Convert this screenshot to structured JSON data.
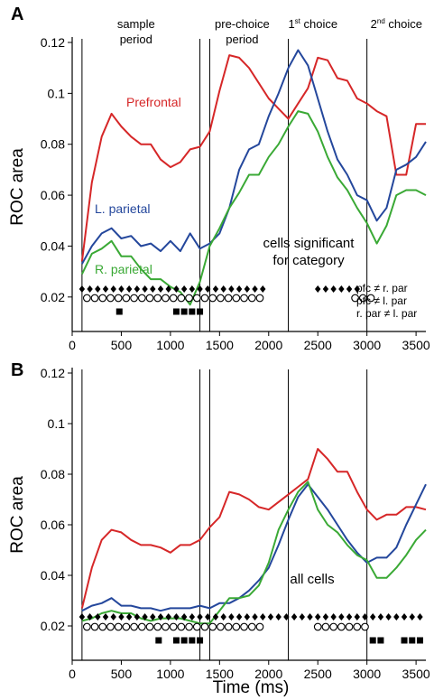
{
  "chart_data": [
    {
      "type": "line",
      "panel": "A",
      "note": [
        "cells significant",
        "for category"
      ],
      "ylabel": "ROC area",
      "xlabel": "",
      "xlim": [
        0,
        3600
      ],
      "ylim": [
        0.01,
        0.12
      ],
      "xticks": [
        0,
        500,
        1000,
        1500,
        2000,
        2500,
        3000,
        3500
      ],
      "yticks": [
        0.02,
        0.04,
        0.06,
        0.08,
        0.1,
        0.12
      ],
      "ytick_labels": [
        "0.02",
        "0.04",
        "0.06",
        "0.08",
        "0.1",
        "0.12"
      ],
      "event_lines": [
        100,
        1300,
        1400,
        2200,
        3000
      ],
      "period_labels": [
        {
          "lines": [
            "sample",
            "period"
          ],
          "x": 650
        },
        {
          "lines": [
            "pre-choice",
            "period"
          ],
          "x": 1730
        },
        {
          "main": "1",
          "sup": "st",
          "rest": " choice",
          "x": 2450
        },
        {
          "main": "2",
          "sup": "nd",
          "rest": " choice",
          "x": 3300
        }
      ],
      "series": [
        {
          "name": "Prefrontal",
          "color": "#d62728",
          "x": [
            100,
            200,
            300,
            400,
            500,
            600,
            700,
            800,
            900,
            1000,
            1100,
            1200,
            1300,
            1400,
            1500,
            1600,
            1700,
            1800,
            1900,
            2000,
            2100,
            2200,
            2300,
            2400,
            2500,
            2600,
            2700,
            2800,
            2900,
            3000,
            3100,
            3200,
            3300,
            3400,
            3500,
            3600
          ],
          "y": [
            0.034,
            0.065,
            0.083,
            0.092,
            0.087,
            0.083,
            0.08,
            0.08,
            0.074,
            0.071,
            0.073,
            0.078,
            0.079,
            0.085,
            0.101,
            0.115,
            0.114,
            0.11,
            0.104,
            0.098,
            0.094,
            0.09,
            0.096,
            0.102,
            0.114,
            0.113,
            0.106,
            0.105,
            0.098,
            0.096,
            0.093,
            0.091,
            0.068,
            0.068,
            0.088,
            0.088
          ]
        },
        {
          "name": "L. parietal",
          "color": "#24479c",
          "x": [
            100,
            200,
            300,
            400,
            500,
            600,
            700,
            800,
            900,
            1000,
            1100,
            1200,
            1300,
            1400,
            1500,
            1600,
            1700,
            1800,
            1900,
            2000,
            2100,
            2200,
            2300,
            2400,
            2500,
            2600,
            2700,
            2800,
            2900,
            3000,
            3100,
            3200,
            3300,
            3400,
            3500,
            3600
          ],
          "y": [
            0.033,
            0.04,
            0.045,
            0.047,
            0.043,
            0.044,
            0.04,
            0.041,
            0.038,
            0.042,
            0.038,
            0.045,
            0.039,
            0.041,
            0.045,
            0.055,
            0.07,
            0.078,
            0.08,
            0.091,
            0.1,
            0.11,
            0.117,
            0.111,
            0.098,
            0.085,
            0.074,
            0.068,
            0.06,
            0.058,
            0.05,
            0.055,
            0.07,
            0.072,
            0.075,
            0.081
          ]
        },
        {
          "name": "R. parietal",
          "color": "#3aa935",
          "x": [
            100,
            200,
            300,
            400,
            500,
            600,
            700,
            800,
            900,
            1000,
            1100,
            1200,
            1300,
            1400,
            1500,
            1600,
            1700,
            1800,
            1900,
            2000,
            2100,
            2200,
            2300,
            2400,
            2500,
            2600,
            2700,
            2800,
            2900,
            3000,
            3100,
            3200,
            3300,
            3400,
            3500,
            3600
          ],
          "y": [
            0.029,
            0.037,
            0.039,
            0.042,
            0.036,
            0.036,
            0.031,
            0.027,
            0.027,
            0.024,
            0.022,
            0.017,
            0.026,
            0.04,
            0.047,
            0.055,
            0.061,
            0.068,
            0.068,
            0.075,
            0.08,
            0.087,
            0.093,
            0.092,
            0.085,
            0.075,
            0.067,
            0.062,
            0.055,
            0.049,
            0.041,
            0.048,
            0.06,
            0.062,
            0.062,
            0.06
          ]
        }
      ],
      "significance_rows": [
        {
          "label": "pfc ≠ r. par",
          "marker": "diamond",
          "x": [
            100,
            180,
            260,
            340,
            420,
            500,
            580,
            660,
            740,
            820,
            900,
            980,
            1060,
            1140,
            1220,
            1300,
            1380,
            1460,
            1540,
            1620,
            1700,
            1780,
            1860,
            1940,
            2500,
            2580,
            2660,
            2740,
            2820,
            2900
          ]
        },
        {
          "label": "pfc ≠ l. par",
          "marker": "circle",
          "x": [
            150,
            230,
            310,
            390,
            470,
            550,
            630,
            710,
            790,
            870,
            950,
            1030,
            1110,
            1190,
            1270,
            1350,
            1430,
            1510,
            1590,
            1670,
            1750,
            1830,
            1910,
            2880,
            2960,
            3040
          ]
        },
        {
          "label": "r. par ≠ l. par",
          "marker": "square",
          "x": [
            480,
            1060,
            1140,
            1220,
            1300
          ]
        }
      ]
    },
    {
      "type": "line",
      "panel": "B",
      "note": [
        "all cells"
      ],
      "ylabel": "ROC area",
      "xlabel": "Time (ms)",
      "xlim": [
        0,
        3600
      ],
      "ylim": [
        0.01,
        0.12
      ],
      "xticks": [
        0,
        500,
        1000,
        1500,
        2000,
        2500,
        3000,
        3500
      ],
      "yticks": [
        0.02,
        0.04,
        0.06,
        0.08,
        0.1,
        0.12
      ],
      "ytick_labels": [
        "0.02",
        "0.04",
        "0.06",
        "0.08",
        "0.1",
        "0.12"
      ],
      "event_lines": [
        100,
        1300,
        1400,
        2200,
        3000
      ],
      "series": [
        {
          "name": "Prefrontal",
          "color": "#d62728",
          "x": [
            100,
            200,
            300,
            400,
            500,
            600,
            700,
            800,
            900,
            1000,
            1100,
            1200,
            1300,
            1400,
            1500,
            1600,
            1700,
            1800,
            1900,
            2000,
            2100,
            2200,
            2300,
            2400,
            2500,
            2600,
            2700,
            2800,
            2900,
            3000,
            3100,
            3200,
            3300,
            3400,
            3500,
            3600
          ],
          "y": [
            0.027,
            0.043,
            0.054,
            0.058,
            0.057,
            0.054,
            0.052,
            0.052,
            0.051,
            0.049,
            0.052,
            0.052,
            0.054,
            0.059,
            0.063,
            0.073,
            0.072,
            0.07,
            0.067,
            0.066,
            0.069,
            0.072,
            0.075,
            0.078,
            0.09,
            0.086,
            0.081,
            0.081,
            0.073,
            0.066,
            0.062,
            0.064,
            0.064,
            0.067,
            0.067,
            0.066
          ]
        },
        {
          "name": "L. parietal",
          "color": "#24479c",
          "x": [
            100,
            200,
            300,
            400,
            500,
            600,
            700,
            800,
            900,
            1000,
            1100,
            1200,
            1300,
            1400,
            1500,
            1600,
            1700,
            1800,
            1900,
            2000,
            2100,
            2200,
            2300,
            2400,
            2500,
            2600,
            2700,
            2800,
            2900,
            3000,
            3100,
            3200,
            3300,
            3400,
            3500,
            3600
          ],
          "y": [
            0.026,
            0.028,
            0.029,
            0.031,
            0.028,
            0.028,
            0.027,
            0.027,
            0.026,
            0.027,
            0.027,
            0.027,
            0.028,
            0.027,
            0.029,
            0.029,
            0.031,
            0.034,
            0.038,
            0.043,
            0.052,
            0.062,
            0.071,
            0.076,
            0.071,
            0.066,
            0.06,
            0.054,
            0.049,
            0.045,
            0.047,
            0.047,
            0.051,
            0.06,
            0.068,
            0.076
          ]
        },
        {
          "name": "R. parietal",
          "color": "#3aa935",
          "x": [
            100,
            200,
            300,
            400,
            500,
            600,
            700,
            800,
            900,
            1000,
            1100,
            1200,
            1300,
            1400,
            1500,
            1600,
            1700,
            1800,
            1900,
            2000,
            2100,
            2200,
            2300,
            2400,
            2500,
            2600,
            2700,
            2800,
            2900,
            3000,
            3100,
            3200,
            3300,
            3400,
            3500,
            3600
          ],
          "y": [
            0.022,
            0.023,
            0.025,
            0.026,
            0.025,
            0.025,
            0.023,
            0.022,
            0.023,
            0.023,
            0.023,
            0.022,
            0.021,
            0.021,
            0.026,
            0.031,
            0.031,
            0.032,
            0.036,
            0.045,
            0.058,
            0.066,
            0.073,
            0.077,
            0.066,
            0.06,
            0.057,
            0.052,
            0.048,
            0.046,
            0.039,
            0.039,
            0.043,
            0.048,
            0.054,
            0.058
          ]
        }
      ],
      "significance_rows": [
        {
          "label": "",
          "marker": "diamond",
          "x": [
            100,
            180,
            260,
            340,
            420,
            500,
            580,
            660,
            740,
            820,
            900,
            980,
            1060,
            1140,
            1220,
            1300,
            1380,
            1460,
            1540,
            1620,
            1700,
            1780,
            1860,
            1940,
            2020,
            2100,
            2180,
            2260,
            2340,
            2420,
            2500,
            2580,
            2660,
            2740,
            2820,
            2900,
            2980,
            3060,
            3140,
            3220,
            3300,
            3380,
            3460,
            3540
          ]
        },
        {
          "label": "",
          "marker": "circle",
          "x": [
            150,
            230,
            310,
            390,
            470,
            550,
            630,
            710,
            790,
            870,
            950,
            1030,
            1110,
            1190,
            1270,
            1350,
            1430,
            1510,
            1590,
            1670,
            1750,
            1830,
            1910,
            2500,
            2580,
            2660,
            2740,
            2820,
            2900,
            2980
          ]
        },
        {
          "label": "",
          "marker": "square",
          "x": [
            880,
            1060,
            1140,
            1220,
            1300,
            3060,
            3140,
            3380,
            3460,
            3540
          ]
        }
      ]
    }
  ]
}
